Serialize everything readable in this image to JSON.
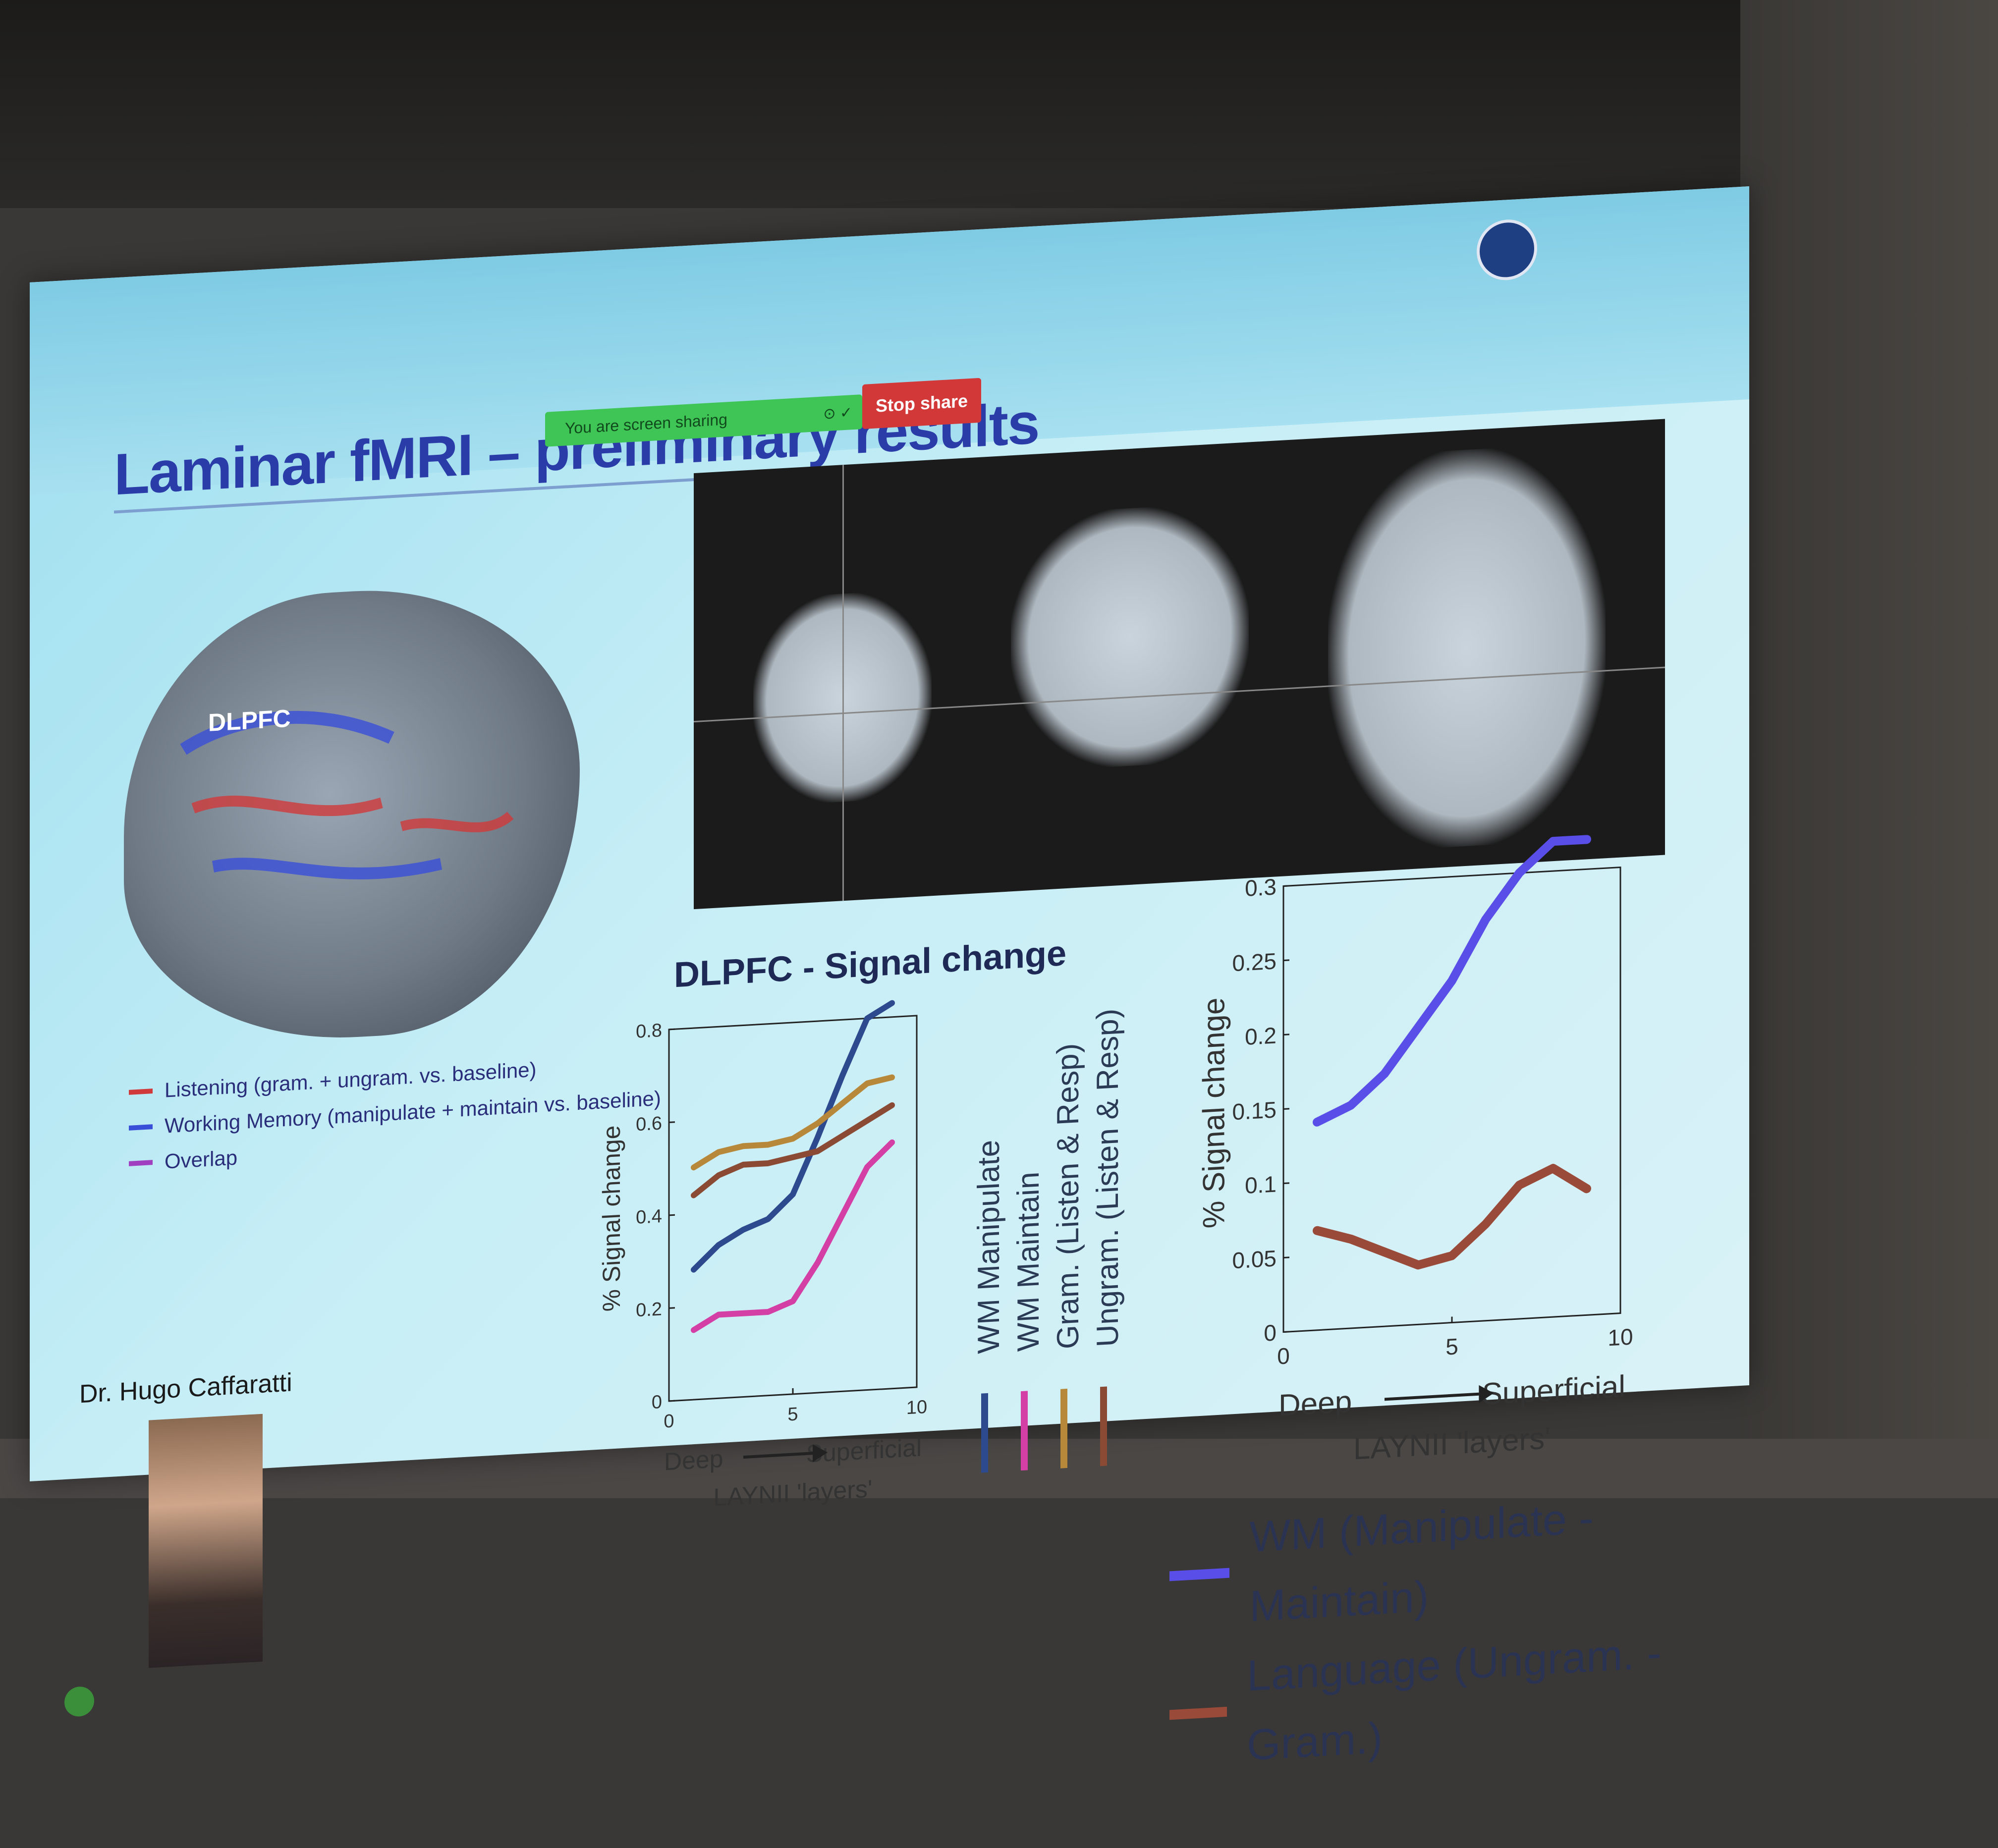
{
  "slide": {
    "title": "Laminar fMRI – preliminary results",
    "screen_share_text": "You are screen sharing",
    "stop_share_label": "Stop share",
    "brain_label": "DLPFC",
    "author": "Dr. Hugo Caffaratti"
  },
  "left_legend": [
    {
      "label": "Listening (gram. + ungram. vs. baseline)",
      "color": "#d03a3a"
    },
    {
      "label": "Working Memory (manipulate + maintain vs. baseline)",
      "color": "#3a4fd8"
    },
    {
      "label": "Overlap",
      "color": "#a040c0"
    }
  ],
  "chart_data": [
    {
      "type": "line",
      "title": "DLPFC - Signal change",
      "ylabel": "% Signal change",
      "xlabel": "LAYNII 'layers'",
      "x_left_label": "Deep",
      "x_right_label": "Superficial",
      "xlim": [
        0,
        10
      ],
      "ylim": [
        0,
        0.8
      ],
      "xticks": [
        "0",
        "5",
        "10"
      ],
      "yticks": [
        "0",
        "0.2",
        "0.4",
        "0.6",
        "0.8"
      ],
      "x": [
        1,
        2,
        3,
        4,
        5,
        6,
        7,
        8,
        9
      ],
      "series": [
        {
          "name": "WM Manipulate",
          "color": "#2e4a8e",
          "values": [
            0.28,
            0.33,
            0.36,
            0.38,
            0.43,
            0.55,
            0.68,
            0.8,
            0.83
          ]
        },
        {
          "name": "WM Maintain",
          "color": "#d43fa6",
          "values": [
            0.15,
            0.18,
            0.18,
            0.18,
            0.2,
            0.28,
            0.38,
            0.48,
            0.53
          ]
        },
        {
          "name": "Gram. (Listen & Resp)",
          "color": "#b8883a",
          "values": [
            0.5,
            0.53,
            0.54,
            0.54,
            0.55,
            0.58,
            0.62,
            0.66,
            0.67
          ]
        },
        {
          "name": "Ungram. (Listen & Resp)",
          "color": "#8a4a34",
          "values": [
            0.44,
            0.48,
            0.5,
            0.5,
            0.51,
            0.52,
            0.55,
            0.58,
            0.61
          ]
        }
      ]
    },
    {
      "type": "line",
      "title": "",
      "ylabel": "% Signal change",
      "xlabel": "LAYNII 'layers'",
      "x_left_label": "Deep",
      "x_right_label": "Superficial",
      "xlim": [
        0,
        10
      ],
      "ylim": [
        0,
        0.3
      ],
      "xticks": [
        "0",
        "5",
        "10"
      ],
      "yticks": [
        "0",
        "0.05",
        "0.1",
        "0.15",
        "0.2",
        "0.25",
        "0.3"
      ],
      "x": [
        1,
        2,
        3,
        4,
        5,
        6,
        7,
        8,
        9
      ],
      "series": [
        {
          "name": "WM (Manipulate - Maintain)",
          "color": "#5a4ee8",
          "values": [
            0.14,
            0.15,
            0.17,
            0.2,
            0.23,
            0.27,
            0.3,
            0.32,
            0.32
          ]
        },
        {
          "name": "Language (Ungram. - Gram.)",
          "color": "#9a4a38",
          "values": [
            0.067,
            0.06,
            0.05,
            0.04,
            0.045,
            0.065,
            0.09,
            0.1,
            0.085
          ]
        }
      ]
    }
  ]
}
